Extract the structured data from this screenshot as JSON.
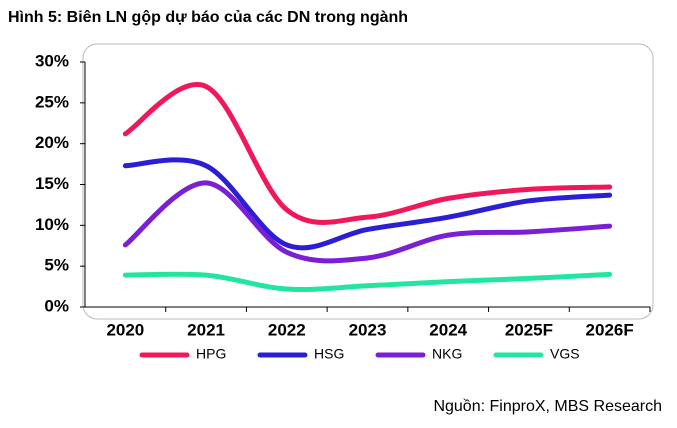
{
  "chart_data": {
    "type": "line",
    "title": "Hình 5: Biên LN gộp dự báo của các DN trong ngành",
    "source": "Nguồn: FinproX, MBS Research",
    "categories": [
      "2020",
      "2021",
      "2022",
      "2023",
      "2024",
      "2025F",
      "2026F"
    ],
    "series": [
      {
        "name": "HPG",
        "color": "#f0185a",
        "values": [
          21.2,
          27,
          11.9,
          11,
          13.3,
          14.4,
          14.7
        ]
      },
      {
        "name": "HSG",
        "color": "#2a1fd6",
        "values": [
          17.3,
          17.3,
          7.6,
          9.5,
          11,
          13,
          13.7
        ]
      },
      {
        "name": "NKG",
        "color": "#7a1fd6",
        "values": [
          7.6,
          15.2,
          6.7,
          6,
          8.8,
          9.2,
          9.9
        ]
      },
      {
        "name": "VGS",
        "color": "#22e6a0",
        "values": [
          3.9,
          3.9,
          2.2,
          2.6,
          3.1,
          3.5,
          4
        ]
      }
    ],
    "ylim": [
      0,
      30
    ],
    "yticks": [
      {
        "value": 0,
        "label": "0%"
      },
      {
        "value": 5,
        "label": "5%"
      },
      {
        "value": 10,
        "label": "10%"
      },
      {
        "value": 15,
        "label": "15%"
      },
      {
        "value": 20,
        "label": "20%"
      },
      {
        "value": 25,
        "label": "25%"
      },
      {
        "value": 30,
        "label": "30%"
      }
    ],
    "legend": "bottom",
    "smooth": true
  }
}
